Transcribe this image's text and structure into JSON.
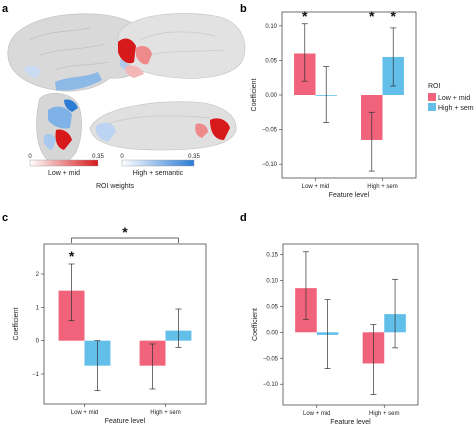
{
  "figure": {
    "panel_a": {
      "letter": "a",
      "colorbar_low": {
        "min": "0",
        "max": "0.35",
        "label": "Low + mid",
        "color": "#d7191c"
      },
      "colorbar_high": {
        "min": "0",
        "max": "0.35",
        "label": "High + semantic",
        "color": "#2c7bd6"
      },
      "colorbar_caption": "ROI weights"
    },
    "legend": {
      "title": "ROI",
      "items": [
        {
          "label": "Low + mid",
          "color": "#f0637a"
        },
        {
          "label": "High + sem",
          "color": "#62bfea"
        }
      ]
    }
  },
  "chart_data": [
    {
      "panel": "b",
      "type": "bar",
      "categories": [
        "Low + mid",
        "High + sem"
      ],
      "series": [
        {
          "name": "Low + mid",
          "values": [
            0.06,
            -0.065
          ],
          "err_low": [
            0.02,
            -0.11
          ],
          "err_high": [
            0.103,
            -0.025
          ]
        },
        {
          "name": "High + sem",
          "values": [
            0.0,
            0.055
          ],
          "err_low": [
            -0.04,
            0.013
          ],
          "err_high": [
            0.041,
            0.097
          ]
        }
      ],
      "xlabel": "Feature level",
      "ylabel": "Coefficient",
      "ylim": [
        -0.12,
        0.12
      ],
      "yticks": [
        0.1,
        0.05,
        0.0,
        -0.05,
        -0.1
      ],
      "ytick_labels": [
        "0.10",
        "0.05",
        "0.00",
        "−0.05",
        "−0.10"
      ],
      "significance": [
        {
          "category": 0,
          "series": 0,
          "label": "*"
        },
        {
          "category": 1,
          "series": 0,
          "label": "*"
        },
        {
          "category": 1,
          "series": 1,
          "label": "*"
        }
      ],
      "legend": "right"
    },
    {
      "panel": "c",
      "type": "bar",
      "categories": [
        "Low + mid",
        "High + sem"
      ],
      "series": [
        {
          "name": "Low + mid",
          "values": [
            1.5,
            -0.75
          ],
          "err_low": [
            0.6,
            -1.45
          ],
          "err_high": [
            2.3,
            -0.1
          ]
        },
        {
          "name": "High + sem",
          "values": [
            -0.75,
            0.3
          ],
          "err_low": [
            -1.5,
            -0.2
          ],
          "err_high": [
            0.0,
            0.95
          ]
        }
      ],
      "xlabel": "Feature level",
      "ylabel": "Coefficient",
      "ylim": [
        -1.9,
        2.9
      ],
      "yticks": [
        2,
        1,
        0,
        -1
      ],
      "ytick_labels": [
        "2",
        "1",
        "0",
        "−1"
      ],
      "significance": [
        {
          "category": 0,
          "series": 0,
          "label": "*"
        }
      ],
      "bracket": {
        "from_category": 0,
        "from_series": 0,
        "to_category": 1,
        "to_series": 1,
        "label": "*"
      }
    },
    {
      "panel": "d",
      "type": "bar",
      "categories": [
        "Low + mid",
        "High + sem"
      ],
      "series": [
        {
          "name": "Low + mid",
          "values": [
            0.085,
            -0.06
          ],
          "err_low": [
            0.025,
            -0.12
          ],
          "err_high": [
            0.155,
            0.015
          ]
        },
        {
          "name": "High + sem",
          "values": [
            -0.005,
            0.035
          ],
          "err_low": [
            -0.07,
            -0.03
          ],
          "err_high": [
            0.063,
            0.102
          ]
        }
      ],
      "xlabel": "Feature level",
      "ylabel": "Coefficient",
      "ylim": [
        -0.14,
        0.17
      ],
      "yticks": [
        0.15,
        0.1,
        0.05,
        0.0,
        -0.05,
        -0.1
      ],
      "ytick_labels": [
        "0.15",
        "0.10",
        "0.05",
        "0.00",
        "−0.05",
        "−0.10"
      ],
      "significance": []
    }
  ]
}
